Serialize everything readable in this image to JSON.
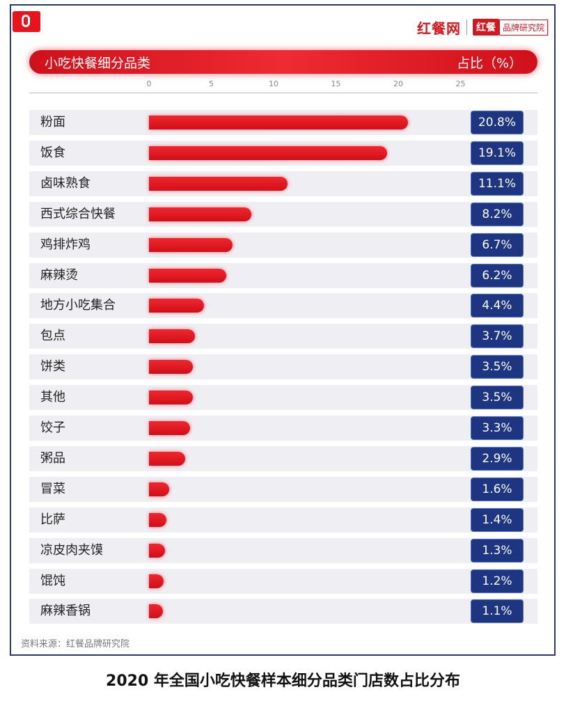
{
  "brand": {
    "name": "红餐网",
    "badge": "红餐",
    "sub": "品牌研究院"
  },
  "header": {
    "left_label": "小吃快餐细分品类",
    "right_label": "占比（%）"
  },
  "source": "资料来源：红餐品牌研究院",
  "caption": "2020 年全国小吃快餐样本细分品类门店数占比分布",
  "colors": {
    "bar": "#e01820",
    "value_box": "#1e3582",
    "frame": "#2b3a6e"
  },
  "chart_data": {
    "type": "bar",
    "orientation": "horizontal",
    "title": "2020 年全国小吃快餐样本细分品类门店数占比分布",
    "xlabel": "占比（%）",
    "ylabel": "小吃快餐细分品类",
    "xlim": [
      0,
      25
    ],
    "ticks": [
      "0",
      "5",
      "10",
      "15",
      "20",
      "25"
    ],
    "grid": false,
    "categories": [
      "粉面",
      "饭食",
      "卤味熟食",
      "西式综合快餐",
      "鸡排炸鸡",
      "麻辣烫",
      "地方小吃集合",
      "包点",
      "饼类",
      "其他",
      "饺子",
      "粥品",
      "冒菜",
      "比萨",
      "凉皮肉夹馍",
      "馄饨",
      "麻辣香锅"
    ],
    "values": [
      20.8,
      19.1,
      11.1,
      8.2,
      6.7,
      6.2,
      4.4,
      3.7,
      3.5,
      3.5,
      3.3,
      2.9,
      1.6,
      1.4,
      1.3,
      1.2,
      1.1
    ],
    "value_labels": [
      "20.8%",
      "19.1%",
      "11.1%",
      "8.2%",
      "6.7%",
      "6.2%",
      "4.4%",
      "3.7%",
      "3.5%",
      "3.5%",
      "3.3%",
      "2.9%",
      "1.6%",
      "1.4%",
      "1.3%",
      "1.2%",
      "1.1%"
    ]
  }
}
